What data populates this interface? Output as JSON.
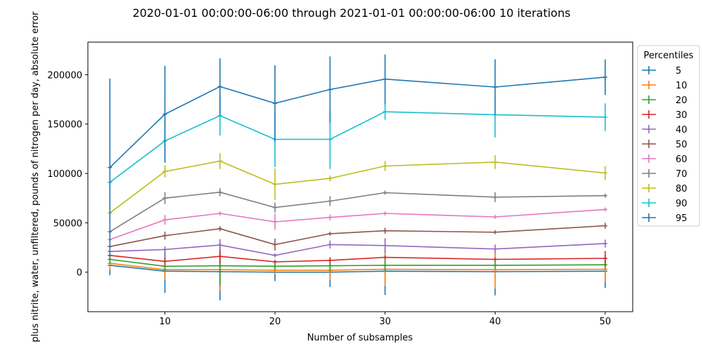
{
  "chart_data": {
    "type": "line",
    "title": "2020-01-01 00:00:00-06:00 through 2021-01-01 00:00:00-06:00 10 iterations",
    "xlabel": "Number of subsamples",
    "ylabel": "plus nitrite, water, unfiltered, pounds of nitrogen per day, absolute error",
    "x": [
      5,
      10,
      15,
      20,
      25,
      30,
      40,
      50
    ],
    "xlim": [
      3,
      52.5
    ],
    "ylim": [
      -40000,
      233000
    ],
    "xticks": [
      10,
      20,
      30,
      40,
      50
    ],
    "yticks": [
      0,
      50000,
      100000,
      150000,
      200000
    ],
    "legend_title": "Percentiles",
    "legend_position": "right, outside plot",
    "grid": false,
    "error_bars": true,
    "series": [
      {
        "name": "5",
        "color": "#1f77b4",
        "values": [
          7000,
          1000,
          500,
          0,
          0,
          1000,
          500,
          1000
        ],
        "err": [
          10000,
          22000,
          29000,
          9000,
          15000,
          24000,
          24000,
          17000
        ]
      },
      {
        "name": "10",
        "color": "#ff7f0e",
        "values": [
          9000,
          2500,
          2500,
          2000,
          2000,
          3000,
          2500,
          3000
        ],
        "err": [
          7000,
          10000,
          21000,
          4000,
          10000,
          17000,
          19000,
          13000
        ]
      },
      {
        "name": "20",
        "color": "#2ca02c",
        "values": [
          13000,
          6000,
          6500,
          6000,
          6500,
          7000,
          7000,
          7500
        ],
        "err": [
          4000,
          5000,
          20000,
          3000,
          6000,
          6000,
          4000,
          3000
        ]
      },
      {
        "name": "30",
        "color": "#d62728",
        "values": [
          17000,
          11000,
          16000,
          10500,
          12000,
          15000,
          13000,
          14000
        ],
        "err": [
          2000,
          4000,
          7000,
          2000,
          3000,
          2000,
          2000,
          7500
        ]
      },
      {
        "name": "40",
        "color": "#9467bd",
        "values": [
          21000,
          23000,
          27500,
          17000,
          28000,
          27000,
          23500,
          29000
        ],
        "err": [
          1500,
          3000,
          6000,
          2000,
          4000,
          7500,
          4500,
          4000
        ]
      },
      {
        "name": "50",
        "color": "#8c564b",
        "values": [
          26000,
          37000,
          44000,
          28000,
          39000,
          42000,
          40500,
          47000
        ],
        "err": [
          2000,
          4000,
          2500,
          6000,
          2000,
          3000,
          2000,
          3000
        ]
      },
      {
        "name": "60",
        "color": "#e377c2",
        "values": [
          33000,
          53000,
          59500,
          51000,
          55500,
          59500,
          56000,
          63500
        ],
        "err": [
          2000,
          5000,
          2000,
          8000,
          3000,
          2000,
          2000,
          2000
        ]
      },
      {
        "name": "70",
        "color": "#7f7f7f",
        "values": [
          41000,
          75000,
          81000,
          65500,
          72000,
          80500,
          76000,
          77500
        ],
        "err": [
          2000,
          6000,
          4000,
          5000,
          5000,
          2000,
          5000,
          2000
        ]
      },
      {
        "name": "80",
        "color": "#bcbd22",
        "values": [
          60000,
          102000,
          112500,
          89000,
          95000,
          107500,
          111500,
          100500
        ],
        "err": [
          3000,
          6000,
          8000,
          16000,
          3000,
          5000,
          7000,
          7000
        ]
      },
      {
        "name": "90",
        "color": "#17becf",
        "values": [
          91000,
          133000,
          158500,
          134500,
          134500,
          162500,
          159500,
          157000
        ],
        "err": [
          4000,
          22000,
          20000,
          28000,
          30000,
          8000,
          23000,
          14000
        ]
      },
      {
        "name": "95",
        "color": "#1f77b4",
        "values": [
          106000,
          160000,
          188000,
          171000,
          185000,
          195500,
          187500,
          197500
        ],
        "err": [
          90000,
          49000,
          28500,
          38500,
          33500,
          25000,
          28000,
          18000
        ]
      }
    ]
  }
}
